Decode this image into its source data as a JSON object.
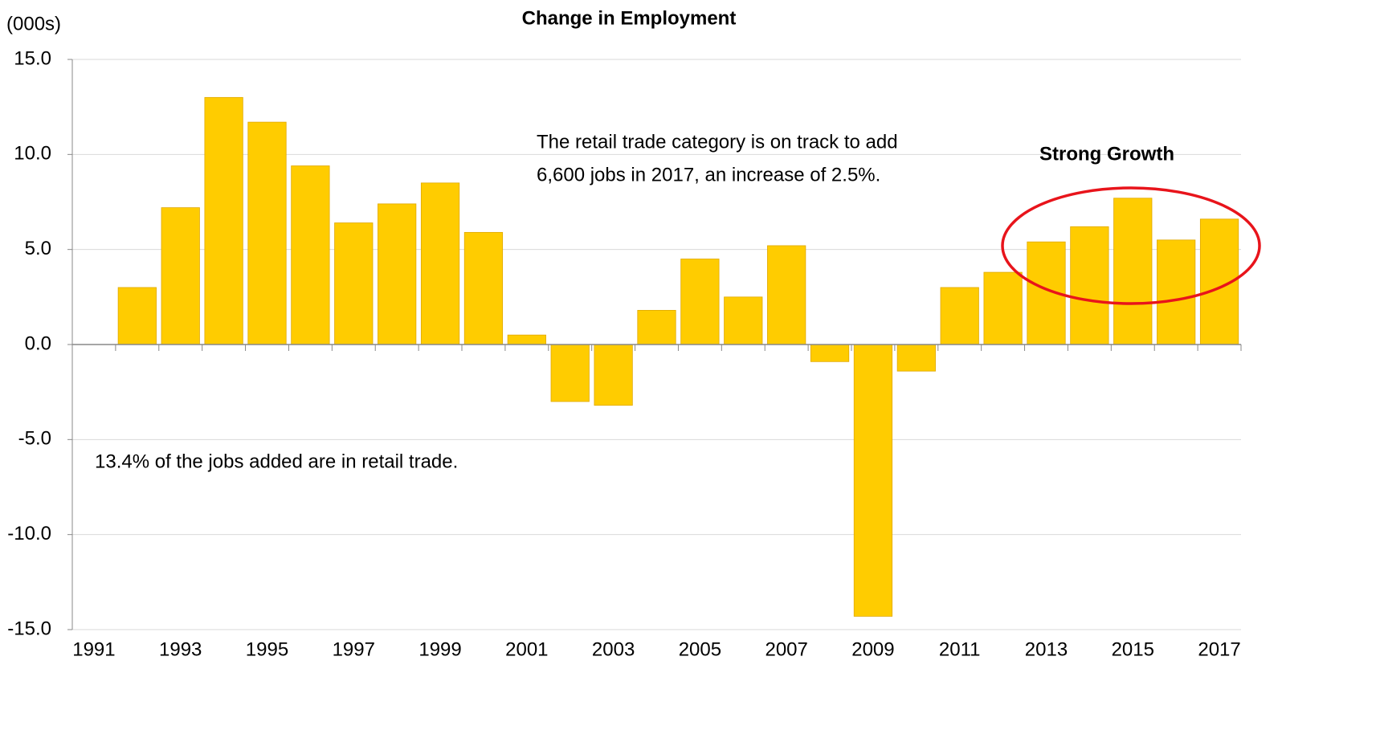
{
  "chart_data": {
    "type": "bar",
    "title": "Change in Employment",
    "y_label": "(000s)",
    "categories": [
      "1991",
      null,
      "1993",
      null,
      "1995",
      null,
      "1997",
      null,
      "1999",
      null,
      "2001",
      null,
      "2003",
      null,
      "2005",
      null,
      "2007",
      null,
      "2009",
      null,
      "2011",
      null,
      "2013",
      null,
      "2015",
      null,
      "2017"
    ],
    "values": [
      null,
      3.0,
      7.2,
      13.0,
      11.7,
      9.4,
      6.4,
      7.4,
      8.5,
      5.9,
      0.5,
      -3.0,
      -3.2,
      1.8,
      4.5,
      2.5,
      5.2,
      -0.9,
      -14.3,
      -1.4,
      3.0,
      3.8,
      5.4,
      6.2,
      7.7,
      5.5,
      6.6
    ],
    "color": "#ffcc00",
    "ylim": [
      -15,
      15
    ],
    "yticks": [
      {
        "value": -15,
        "label": "-15.0"
      },
      {
        "value": -10,
        "label": "-10.0"
      },
      {
        "value": -5,
        "label": "-5.0"
      },
      {
        "value": 0,
        "label": "0.0"
      },
      {
        "value": 5,
        "label": "5.0"
      },
      {
        "value": 10,
        "label": "10.0"
      },
      {
        "value": 15,
        "label": "15.0"
      }
    ],
    "grid": true,
    "annotations": [
      "The retail trade category is on track to add",
      "6,600 jobs in 2017, an increase of 2.5%.",
      "13.4% of the jobs added are in retail trade.",
      "Strong Growth"
    ]
  }
}
